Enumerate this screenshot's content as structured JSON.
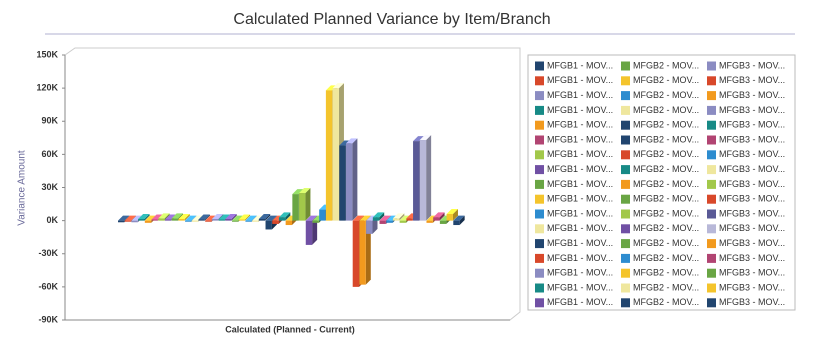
{
  "chart_data": {
    "type": "bar3d",
    "title": "Calculated Planned Variance by Item/Branch",
    "y_label": "Variance Amount",
    "categories": [
      "Calculated (Planned - Current)"
    ],
    "ylim": [
      -90000,
      150000
    ],
    "yticks": [
      {
        "value": -90000,
        "label": "-90K"
      },
      {
        "value": -60000,
        "label": "-60K"
      },
      {
        "value": -30000,
        "label": "-30K"
      },
      {
        "value": 0,
        "label": "0K"
      },
      {
        "value": 30000,
        "label": "30K"
      },
      {
        "value": 60000,
        "label": "60K"
      },
      {
        "value": 90000,
        "label": "90K"
      },
      {
        "value": 120000,
        "label": "120K"
      },
      {
        "value": 150000,
        "label": "150K"
      }
    ],
    "grid": false,
    "legend": "right",
    "series": [
      {
        "name": "MFGB1 - MOV...",
        "color": "#21456f",
        "values": [
          -1500
        ]
      },
      {
        "name": "MFGB1 - MOV...",
        "color": "#d8482a",
        "values": [
          -1000
        ]
      },
      {
        "name": "MFGB1 - MOV...",
        "color": "#8b8cc2",
        "values": [
          -1500
        ]
      },
      {
        "name": "MFGB1 - MOV...",
        "color": "#178a86",
        "values": [
          1500
        ]
      },
      {
        "name": "MFGB1 - MOV...",
        "color": "#f29a1e",
        "values": [
          -2000
        ]
      },
      {
        "name": "MFGB1 - MOV...",
        "color": "#b14472",
        "values": [
          1000
        ]
      },
      {
        "name": "MFGB1 - MOV...",
        "color": "#a2c84a",
        "values": [
          2000
        ]
      },
      {
        "name": "MFGB1 - MOV...",
        "color": "#7050a4",
        "values": [
          1000
        ]
      },
      {
        "name": "MFGB1 - MOV...",
        "color": "#69a544",
        "values": [
          2000
        ]
      },
      {
        "name": "MFGB1 - MOV...",
        "color": "#f4c42c",
        "values": [
          1500
        ]
      },
      {
        "name": "MFGB1 - MOV...",
        "color": "#2d8ccf",
        "values": [
          -1000
        ]
      },
      {
        "name": "MFGB1 - MOV...",
        "color": "#efe79e",
        "values": [
          -1000
        ]
      },
      {
        "name": "MFGB1 - MOV...",
        "color": "#21456f",
        "values": [
          1000
        ]
      },
      {
        "name": "MFGB1 - MOV...",
        "color": "#d8482a",
        "values": [
          -1000
        ]
      },
      {
        "name": "MFGB1 - MOV...",
        "color": "#8b8cc2",
        "values": [
          1500
        ]
      },
      {
        "name": "MFGB1 - MOV...",
        "color": "#178a86",
        "values": [
          1000
        ]
      },
      {
        "name": "MFGB1 - MOV...",
        "color": "#7050a4",
        "values": [
          1500
        ]
      },
      {
        "name": "MFGB2 - MOV...",
        "color": "#69a544",
        "values": [
          -1000
        ]
      },
      {
        "name": "MFGB2 - MOV...",
        "color": "#f4c42c",
        "values": [
          1000
        ]
      },
      {
        "name": "MFGB2 - MOV...",
        "color": "#2d8ccf",
        "values": [
          -1000
        ]
      },
      {
        "name": "MFGB2 - MOV...",
        "color": "#efe79e",
        "values": [
          -1000
        ]
      },
      {
        "name": "MFGB2 - MOV...",
        "color": "#21456f",
        "values": [
          1500
        ]
      },
      {
        "name": "MFGB2 - MOV...",
        "color": "#21456f",
        "values": [
          -8000
        ]
      },
      {
        "name": "MFGB2 - MOV...",
        "color": "#d8482a",
        "values": [
          -3000
        ]
      },
      {
        "name": "MFGB2 - MOV...",
        "color": "#178a86",
        "values": [
          3000
        ]
      },
      {
        "name": "MFGB2 - MOV...",
        "color": "#f29a1e",
        "values": [
          -4000
        ]
      },
      {
        "name": "MFGB2 - MOV...",
        "color": "#69a544",
        "values": [
          24000
        ]
      },
      {
        "name": "MFGB2 - MOV...",
        "color": "#a2c84a",
        "values": [
          25000
        ]
      },
      {
        "name": "MFGB2 - MOV...",
        "color": "#7050a4",
        "values": [
          -22000
        ]
      },
      {
        "name": "MFGB2 - MOV...",
        "color": "#69a544",
        "values": [
          -2000
        ]
      },
      {
        "name": "MFGB2 - MOV...",
        "color": "#2d8ccf",
        "values": [
          10000
        ]
      },
      {
        "name": "MFGB2 - MOV...",
        "color": "#f4c42c",
        "values": [
          118000
        ]
      },
      {
        "name": "MFGB2 - MOV...",
        "color": "#efe79e",
        "values": [
          120000
        ]
      },
      {
        "name": "MFGB2 - MOV...",
        "color": "#21456f",
        "values": [
          68000
        ]
      },
      {
        "name": "MFGB3 - MOV...",
        "color": "#8b8cc2",
        "values": [
          70000
        ]
      },
      {
        "name": "MFGB3 - MOV...",
        "color": "#d8482a",
        "values": [
          -60000
        ]
      },
      {
        "name": "MFGB3 - MOV...",
        "color": "#f29a1e",
        "values": [
          -58000
        ]
      },
      {
        "name": "MFGB3 - MOV...",
        "color": "#8b8cc2",
        "values": [
          -12000
        ]
      },
      {
        "name": "MFGB3 - MOV...",
        "color": "#178a86",
        "values": [
          3000
        ]
      },
      {
        "name": "MFGB3 - MOV...",
        "color": "#b14472",
        "values": [
          -3000
        ]
      },
      {
        "name": "MFGB3 - MOV...",
        "color": "#2d8ccf",
        "values": [
          -2000
        ]
      },
      {
        "name": "MFGB3 - MOV...",
        "color": "#efe79e",
        "values": [
          2000
        ]
      },
      {
        "name": "MFGB3 - MOV...",
        "color": "#a2c84a",
        "values": [
          -2000
        ]
      },
      {
        "name": "MFGB3 - MOV...",
        "color": "#d8482a",
        "values": [
          2000
        ]
      },
      {
        "name": "MFGB3 - MOV...",
        "color": "#5a5a96",
        "values": [
          72000
        ]
      },
      {
        "name": "MFGB3 - MOV...",
        "color": "#b8b8d8",
        "values": [
          73000
        ]
      },
      {
        "name": "MFGB3 - MOV...",
        "color": "#f29a1e",
        "values": [
          -2000
        ]
      },
      {
        "name": "MFGB3 - MOV...",
        "color": "#b14472",
        "values": [
          3000
        ]
      },
      {
        "name": "MFGB3 - MOV...",
        "color": "#69a544",
        "values": [
          -3000
        ]
      },
      {
        "name": "MFGB3 - MOV...",
        "color": "#f4c42c",
        "values": [
          6000
        ]
      },
      {
        "name": "MFGB3 - MOV...",
        "color": "#21456f",
        "values": [
          -4000
        ]
      }
    ]
  }
}
